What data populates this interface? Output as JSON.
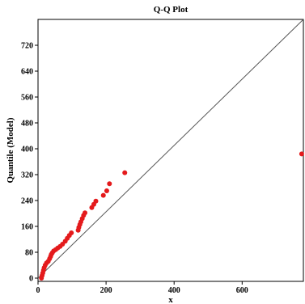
{
  "chart_data": {
    "type": "scatter",
    "title": "Q-Q Plot",
    "xlabel": "x",
    "ylabel": "Quantile (Model)",
    "xlim": [
      0,
      780
    ],
    "ylim": [
      -10,
      800
    ],
    "x_ticks": [
      0,
      200,
      400,
      600
    ],
    "y_ticks": [
      0,
      80,
      160,
      240,
      320,
      400,
      480,
      560,
      640,
      720
    ],
    "grid": false,
    "legend": "none",
    "reference_line": {
      "x": [
        0,
        780
      ],
      "y": [
        0,
        800
      ]
    },
    "series": [
      {
        "marker_color": "#e41a1c",
        "line_color": "#555555",
        "points": [
          {
            "x": 10,
            "y": 0
          },
          {
            "x": 12,
            "y": 8
          },
          {
            "x": 14,
            "y": 16
          },
          {
            "x": 16,
            "y": 24
          },
          {
            "x": 18,
            "y": 32
          },
          {
            "x": 21,
            "y": 40
          },
          {
            "x": 25,
            "y": 47
          },
          {
            "x": 30,
            "y": 52
          },
          {
            "x": 34,
            "y": 60
          },
          {
            "x": 37,
            "y": 67
          },
          {
            "x": 39,
            "y": 73
          },
          {
            "x": 42,
            "y": 78
          },
          {
            "x": 46,
            "y": 84
          },
          {
            "x": 52,
            "y": 88
          },
          {
            "x": 58,
            "y": 93
          },
          {
            "x": 65,
            "y": 98
          },
          {
            "x": 72,
            "y": 105
          },
          {
            "x": 80,
            "y": 114
          },
          {
            "x": 86,
            "y": 123
          },
          {
            "x": 92,
            "y": 132
          },
          {
            "x": 98,
            "y": 140
          },
          {
            "x": 118,
            "y": 148
          },
          {
            "x": 120,
            "y": 157
          },
          {
            "x": 123,
            "y": 166
          },
          {
            "x": 126,
            "y": 174
          },
          {
            "x": 130,
            "y": 184
          },
          {
            "x": 134,
            "y": 194
          },
          {
            "x": 138,
            "y": 202
          },
          {
            "x": 158,
            "y": 218
          },
          {
            "x": 164,
            "y": 228
          },
          {
            "x": 170,
            "y": 238
          },
          {
            "x": 192,
            "y": 256
          },
          {
            "x": 202,
            "y": 270
          },
          {
            "x": 210,
            "y": 292
          },
          {
            "x": 255,
            "y": 326
          },
          {
            "x": 775,
            "y": 384
          }
        ]
      }
    ]
  }
}
